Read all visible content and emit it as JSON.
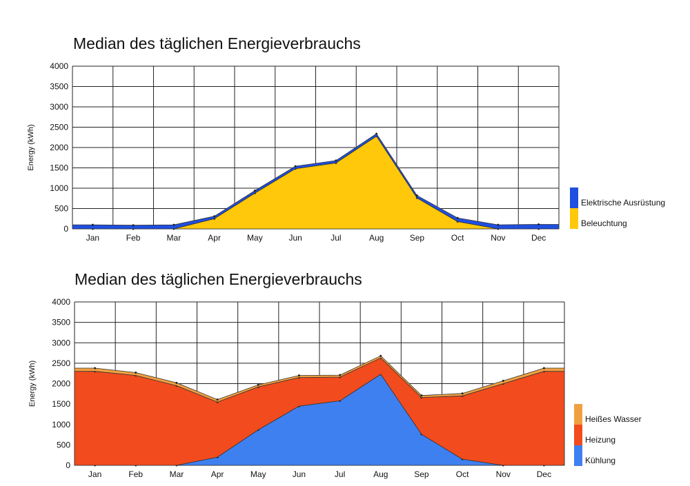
{
  "chart_data": [
    {
      "type": "area",
      "stacked": true,
      "title": "Median des täglichen Energieverbrauchs",
      "ylabel": "Energy (kWh)",
      "ylim": [
        0,
        4000
      ],
      "yticks": [
        0,
        500,
        1000,
        1500,
        2000,
        2500,
        3000,
        3500,
        4000
      ],
      "grid": true,
      "legend": "right",
      "x": [
        "Jan",
        "Feb",
        "Mar",
        "Apr",
        "May",
        "Jun",
        "Jul",
        "Aug",
        "Sep",
        "Oct",
        "Nov",
        "Dec"
      ],
      "series": [
        {
          "name": "Beleuchtung",
          "color": "#FFC80A",
          "values": [
            0,
            0,
            0,
            250,
            880,
            1480,
            1620,
            2280,
            760,
            180,
            0,
            0
          ]
        },
        {
          "name": "Elektrische Ausrüstung",
          "color": "#1F4FE0",
          "values": [
            100,
            90,
            100,
            60,
            60,
            60,
            60,
            60,
            60,
            90,
            100,
            110
          ]
        }
      ]
    },
    {
      "type": "area",
      "stacked": true,
      "title": "Median des täglichen Energieverbrauchs",
      "ylabel": "Energy (kWh)",
      "ylim": [
        0,
        4000
      ],
      "yticks": [
        0,
        500,
        1000,
        1500,
        2000,
        2500,
        3000,
        3500,
        4000
      ],
      "grid": true,
      "legend": "right",
      "x": [
        "Jan",
        "Feb",
        "Mar",
        "Apr",
        "May",
        "Jun",
        "Jul",
        "Aug",
        "Sep",
        "Oct",
        "Nov",
        "Dec"
      ],
      "series": [
        {
          "name": "Kühlung",
          "color": "#3F80F0",
          "values": [
            0,
            0,
            0,
            200,
            870,
            1450,
            1580,
            2230,
            760,
            150,
            0,
            0
          ]
        },
        {
          "name": "Heizung",
          "color": "#F24B1E",
          "values": [
            2300,
            2200,
            1950,
            1350,
            1050,
            700,
            580,
            400,
            900,
            1550,
            2000,
            2300
          ]
        },
        {
          "name": "Heißes Wasser",
          "color": "#F0A040",
          "values": [
            80,
            70,
            70,
            60,
            50,
            50,
            50,
            50,
            50,
            60,
            70,
            80
          ]
        }
      ]
    }
  ]
}
